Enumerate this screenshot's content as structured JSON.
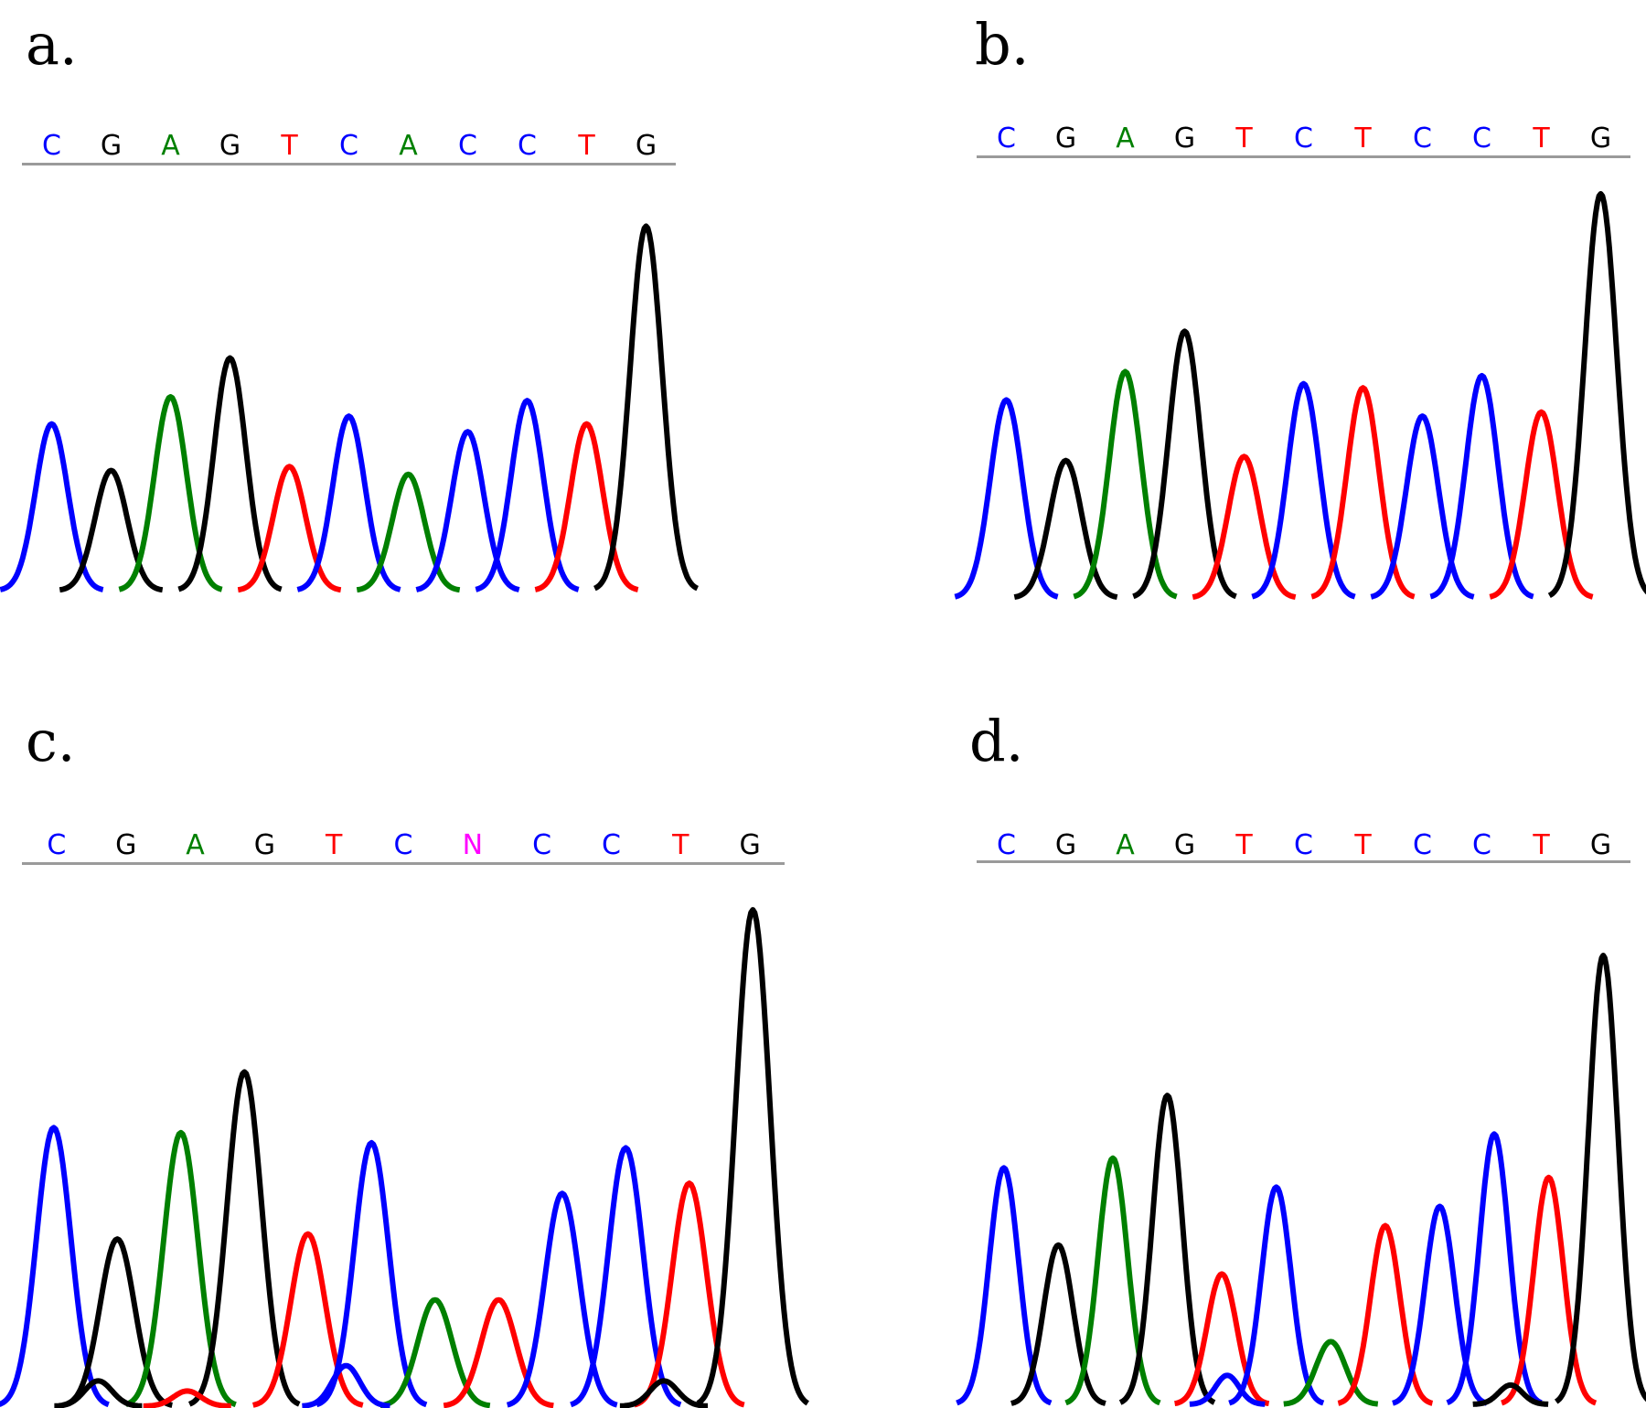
{
  "colors": {
    "A": "#008000",
    "C": "#0000ff",
    "G": "#000000",
    "T": "#ff0000",
    "N": "#ff00ff"
  },
  "panels": [
    {
      "label": "a.",
      "bases": [
        "C",
        "G",
        "A",
        "G",
        "T",
        "C",
        "A",
        "C",
        "C",
        "T",
        "G"
      ],
      "peaks": [
        {
          "base": "C",
          "height": 0.43
        },
        {
          "base": "G",
          "height": 0.31
        },
        {
          "base": "A",
          "height": 0.5
        },
        {
          "base": "G",
          "height": 0.6
        },
        {
          "base": "T",
          "height": 0.32
        },
        {
          "base": "C",
          "height": 0.45
        },
        {
          "base": "A",
          "height": 0.3
        },
        {
          "base": "C",
          "height": 0.41
        },
        {
          "base": "C",
          "height": 0.49
        },
        {
          "base": "T",
          "height": 0.43
        },
        {
          "base": "G",
          "height": 0.94
        }
      ],
      "minor_peaks": []
    },
    {
      "label": "b.",
      "bases": [
        "C",
        "G",
        "A",
        "G",
        "T",
        "C",
        "T",
        "C",
        "C",
        "T",
        "G"
      ],
      "peaks": [
        {
          "base": "C",
          "height": 0.49
        },
        {
          "base": "G",
          "height": 0.34
        },
        {
          "base": "A",
          "height": 0.56
        },
        {
          "base": "G",
          "height": 0.66
        },
        {
          "base": "T",
          "height": 0.35
        },
        {
          "base": "C",
          "height": 0.53
        },
        {
          "base": "T",
          "height": 0.52
        },
        {
          "base": "C",
          "height": 0.45
        },
        {
          "base": "C",
          "height": 0.55
        },
        {
          "base": "T",
          "height": 0.46
        },
        {
          "base": "G",
          "height": 1.0
        }
      ],
      "minor_peaks": []
    },
    {
      "label": "c.",
      "bases": [
        "C",
        "G",
        "A",
        "G",
        "T",
        "C",
        "N",
        "C",
        "C",
        "T",
        "G"
      ],
      "peaks": [
        {
          "base": "C",
          "height": 0.55
        },
        {
          "base": "G",
          "height": 0.33
        },
        {
          "base": "A",
          "height": 0.54
        },
        {
          "base": "G",
          "height": 0.66
        },
        {
          "base": "T",
          "height": 0.34
        },
        {
          "base": "C",
          "height": 0.52
        },
        {
          "base": "A",
          "height": 0.21
        },
        {
          "base": "T",
          "height": 0.21
        },
        {
          "base": "C",
          "height": 0.42
        },
        {
          "base": "C",
          "height": 0.51
        },
        {
          "base": "T",
          "height": 0.44
        },
        {
          "base": "G",
          "height": 0.98
        }
      ],
      "minor_peaks": [
        {
          "base": "G",
          "position": 1.2,
          "height": 0.05
        },
        {
          "base": "T",
          "position": 2.6,
          "height": 0.03
        },
        {
          "base": "C",
          "position": 5.1,
          "height": 0.08
        },
        {
          "base": "G",
          "position": 10.1,
          "height": 0.05
        }
      ]
    },
    {
      "label": "d.",
      "bases": [
        "C",
        "G",
        "A",
        "G",
        "T",
        "C",
        "T",
        "C",
        "C",
        "T",
        "G"
      ],
      "peaks": [
        {
          "base": "C",
          "height": 0.49
        },
        {
          "base": "G",
          "height": 0.33
        },
        {
          "base": "A",
          "height": 0.51
        },
        {
          "base": "G",
          "height": 0.64
        },
        {
          "base": "T",
          "height": 0.27
        },
        {
          "base": "C",
          "height": 0.45
        },
        {
          "base": "A",
          "height": 0.13
        },
        {
          "base": "T",
          "height": 0.37
        },
        {
          "base": "C",
          "height": 0.41
        },
        {
          "base": "C",
          "height": 0.56
        },
        {
          "base": "T",
          "height": 0.47
        },
        {
          "base": "G",
          "height": 0.93
        }
      ],
      "minor_peaks": [
        {
          "base": "C",
          "position": 4.6,
          "height": 0.06
        },
        {
          "base": "G",
          "position": 9.8,
          "height": 0.04
        }
      ]
    }
  ]
}
